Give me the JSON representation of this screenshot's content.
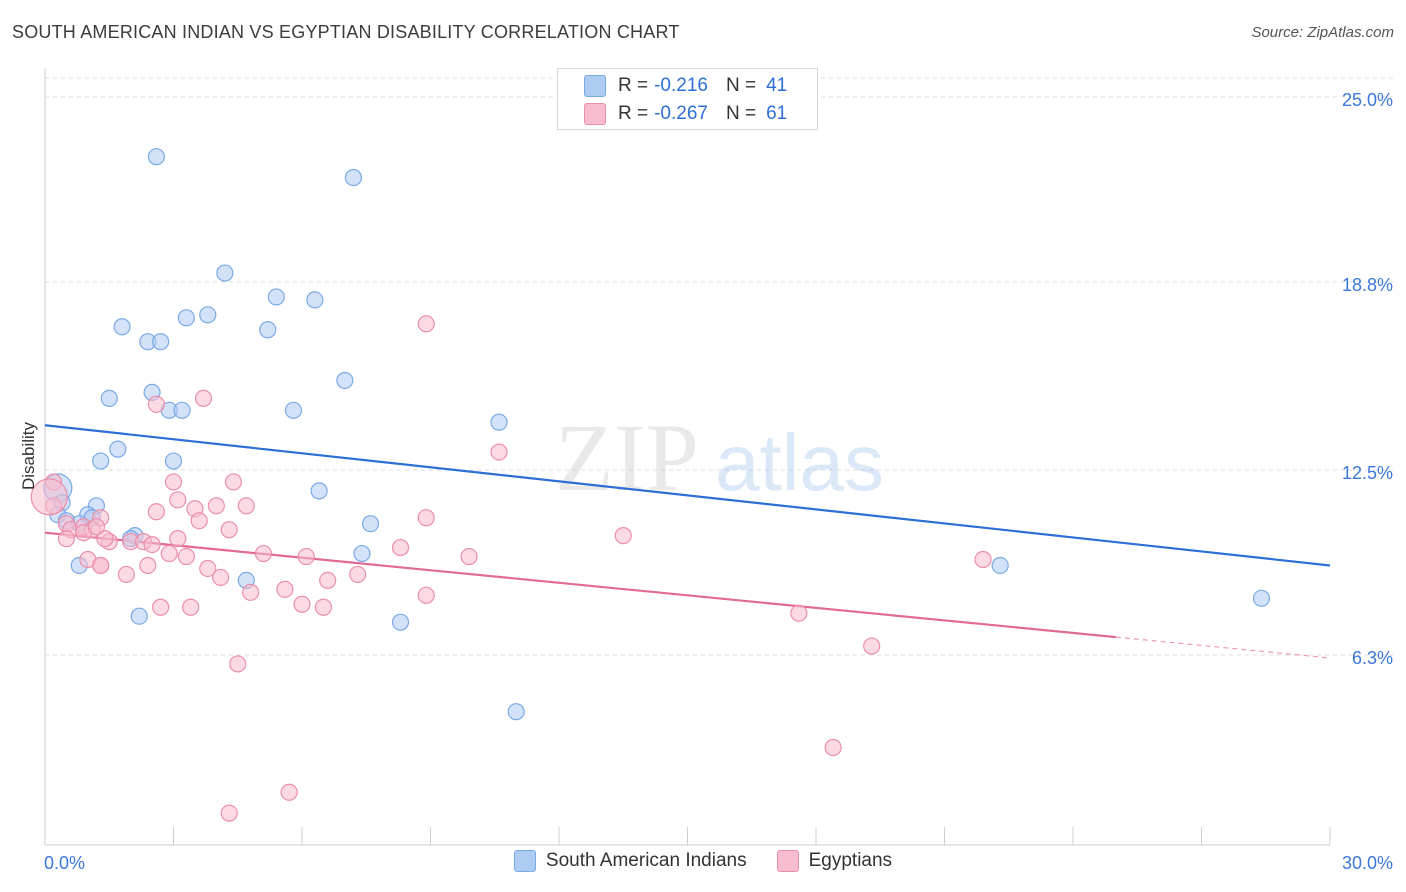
{
  "title": "SOUTH AMERICAN INDIAN VS EGYPTIAN DISABILITY CORRELATION CHART",
  "source": "Source: ZipAtlas.com",
  "watermark": {
    "zip": "ZIP",
    "atlas": "atlas"
  },
  "stats": [
    {
      "r_label": "R =",
      "r_value": "-0.216",
      "n_label": "N =",
      "n_value": "41",
      "color": "#aecbf4"
    },
    {
      "r_label": "R =",
      "r_value": "-0.267",
      "n_label": "N =",
      "n_value": "61",
      "color": "#f7bccd"
    }
  ],
  "chart_data": {
    "type": "scatter",
    "title": "SOUTH AMERICAN INDIAN VS EGYPTIAN DISABILITY CORRELATION CHART",
    "xlabel": "",
    "ylabel": "Disability",
    "xlim": [
      0,
      30
    ],
    "ylim": [
      0,
      26
    ],
    "x_tick_labels": [
      "0.0%",
      "30.0%"
    ],
    "y_ticks": [
      6.3,
      12.5,
      18.8,
      25.0
    ],
    "y_tick_labels": [
      "6.3%",
      "12.5%",
      "18.8%",
      "25.0%"
    ],
    "grid": "horizontal dashed",
    "legend_position": "bottom",
    "series": [
      {
        "name": "South American Indians",
        "color": "#aecbf4",
        "stroke": "#7aaae6",
        "line_color": "#2e6fd6",
        "trend": {
          "x": [
            0,
            30
          ],
          "y": [
            14.0,
            9.3
          ]
        },
        "points": [
          [
            2.6,
            23.0
          ],
          [
            7.2,
            22.3
          ],
          [
            4.2,
            19.1
          ],
          [
            5.4,
            18.3
          ],
          [
            6.3,
            18.2
          ],
          [
            1.8,
            17.3
          ],
          [
            5.2,
            17.2
          ],
          [
            3.3,
            17.6
          ],
          [
            3.8,
            17.7
          ],
          [
            2.4,
            16.8
          ],
          [
            2.7,
            16.8
          ],
          [
            7.0,
            15.5
          ],
          [
            1.5,
            14.9
          ],
          [
            2.5,
            15.1
          ],
          [
            2.9,
            14.5
          ],
          [
            3.2,
            14.5
          ],
          [
            5.8,
            14.5
          ],
          [
            10.6,
            14.1
          ],
          [
            1.7,
            13.2
          ],
          [
            1.3,
            12.8
          ],
          [
            3.0,
            12.8
          ],
          [
            6.4,
            11.8
          ],
          [
            0.3,
            11.9
          ],
          [
            0.4,
            11.4
          ],
          [
            1.2,
            11.3
          ],
          [
            0.3,
            11.0
          ],
          [
            0.5,
            10.8
          ],
          [
            1.0,
            11.0
          ],
          [
            1.1,
            10.9
          ],
          [
            0.8,
            10.7
          ],
          [
            7.6,
            10.7
          ],
          [
            2.1,
            10.3
          ],
          [
            2.0,
            10.2
          ],
          [
            0.8,
            9.3
          ],
          [
            7.4,
            9.7
          ],
          [
            4.7,
            8.8
          ],
          [
            22.3,
            9.3
          ],
          [
            28.4,
            8.2
          ],
          [
            2.2,
            7.6
          ],
          [
            8.3,
            7.4
          ],
          [
            11.0,
            4.4
          ]
        ],
        "sizes": {
          "default": 8,
          "large": [
            [
              0.3,
              11.9,
              14
            ]
          ]
        }
      },
      {
        "name": "Egyptians",
        "color": "#f7bccd",
        "stroke": "#ea8fab",
        "line_color": "#e26a95",
        "trend": {
          "x": [
            0,
            25
          ],
          "y": [
            10.4,
            6.9
          ]
        },
        "trend_dashed": {
          "x": [
            25,
            30
          ],
          "y": [
            6.9,
            6.2
          ]
        },
        "points": [
          [
            0.2,
            12.1
          ],
          [
            8.9,
            17.4
          ],
          [
            3.7,
            14.9
          ],
          [
            2.6,
            14.7
          ],
          [
            10.6,
            13.1
          ],
          [
            3.0,
            12.1
          ],
          [
            4.4,
            12.1
          ],
          [
            3.1,
            11.5
          ],
          [
            3.5,
            11.2
          ],
          [
            4.0,
            11.3
          ],
          [
            4.7,
            11.3
          ],
          [
            1.3,
            10.9
          ],
          [
            2.6,
            11.1
          ],
          [
            3.6,
            10.8
          ],
          [
            8.9,
            10.9
          ],
          [
            0.2,
            11.3
          ],
          [
            0.5,
            10.7
          ],
          [
            0.6,
            10.5
          ],
          [
            0.9,
            10.6
          ],
          [
            1.1,
            10.5
          ],
          [
            1.5,
            10.1
          ],
          [
            2.0,
            10.1
          ],
          [
            2.3,
            10.1
          ],
          [
            2.5,
            10.0
          ],
          [
            0.5,
            10.2
          ],
          [
            0.9,
            10.4
          ],
          [
            1.4,
            10.2
          ],
          [
            1.2,
            10.6
          ],
          [
            3.1,
            10.2
          ],
          [
            4.3,
            10.5
          ],
          [
            13.5,
            10.3
          ],
          [
            1.0,
            9.5
          ],
          [
            1.3,
            9.3
          ],
          [
            2.4,
            9.3
          ],
          [
            2.9,
            9.7
          ],
          [
            3.3,
            9.6
          ],
          [
            5.1,
            9.7
          ],
          [
            6.1,
            9.6
          ],
          [
            8.3,
            9.9
          ],
          [
            9.9,
            9.6
          ],
          [
            21.9,
            9.5
          ],
          [
            1.9,
            9.0
          ],
          [
            1.3,
            9.3
          ],
          [
            3.8,
            9.2
          ],
          [
            4.1,
            8.9
          ],
          [
            6.6,
            8.8
          ],
          [
            7.3,
            9.0
          ],
          [
            4.8,
            8.4
          ],
          [
            5.6,
            8.5
          ],
          [
            8.9,
            8.3
          ],
          [
            6.0,
            8.0
          ],
          [
            6.5,
            7.9
          ],
          [
            2.7,
            7.9
          ],
          [
            3.4,
            7.9
          ],
          [
            17.6,
            7.7
          ],
          [
            19.3,
            6.6
          ],
          [
            4.5,
            6.0
          ],
          [
            18.4,
            3.2
          ],
          [
            5.7,
            1.7
          ],
          [
            4.3,
            1.0
          ],
          [
            0.1,
            11.6
          ]
        ],
        "sizes": {
          "default": 8,
          "large": [
            [
              0.1,
              11.6,
              18
            ]
          ]
        }
      }
    ]
  }
}
